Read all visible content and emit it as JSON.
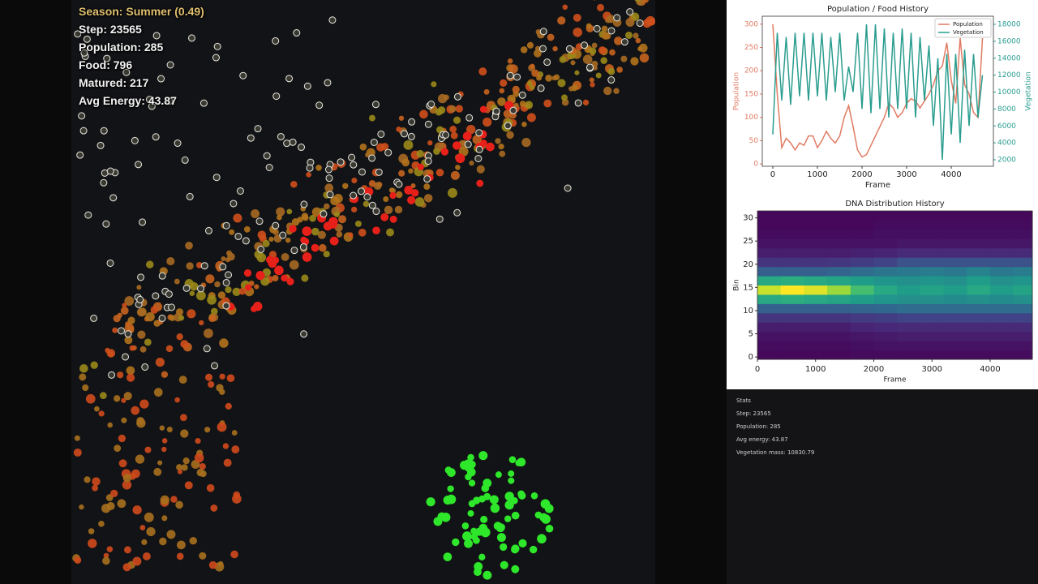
{
  "overlay": {
    "season": "Season: Summer (0.49)",
    "lines": [
      "Step: 23565",
      "Population: 285",
      "Food: 796",
      "Matured: 217",
      "Avg Energy: 43.87"
    ]
  },
  "stats_panel": {
    "title": "Stats",
    "lines": [
      "Step: 23565",
      "Population: 285",
      "Avg energy: 43.87",
      "Vegetation mass: 10830.79"
    ]
  },
  "chart_data": [
    {
      "type": "line",
      "title": "Population / Food History",
      "xlabel": "Frame",
      "ylabel": "Population",
      "y2label": "Vegetation",
      "legend": "upper right",
      "x": [
        0,
        100,
        200,
        300,
        400,
        500,
        600,
        700,
        800,
        900,
        1000,
        1100,
        1200,
        1300,
        1400,
        1500,
        1600,
        1700,
        1800,
        1900,
        2000,
        2100,
        2200,
        2300,
        2400,
        2500,
        2600,
        2700,
        2800,
        2900,
        3000,
        3100,
        3200,
        3300,
        3400,
        3500,
        3600,
        3700,
        3800,
        3900,
        4000,
        4100,
        4200,
        4300,
        4400,
        4500,
        4600,
        4700
      ],
      "xlim": [
        -236,
        4945
      ],
      "xticks": [
        0,
        1000,
        2000,
        3000,
        4000
      ],
      "ylim": [
        -5,
        317
      ],
      "yticks": [
        0,
        50,
        100,
        150,
        200,
        250,
        300
      ],
      "y2lim": [
        1234,
        18958
      ],
      "y2ticks": [
        2000,
        4000,
        6000,
        8000,
        10000,
        12000,
        14000,
        16000,
        18000
      ],
      "series": [
        {
          "name": "Population",
          "color": "#e07b62",
          "values": [
            300,
            150,
            35,
            55,
            45,
            30,
            45,
            40,
            60,
            60,
            35,
            50,
            70,
            55,
            45,
            60,
            100,
            125,
            80,
            30,
            15,
            20,
            40,
            60,
            80,
            100,
            130,
            120,
            100,
            110,
            130,
            140,
            135,
            120,
            135,
            150,
            170,
            200,
            210,
            260,
            180,
            130,
            270,
            170,
            150,
            110,
            100,
            270
          ]
        },
        {
          "name": "Vegetation",
          "color": "#2a9d8f",
          "axis": "y2",
          "values": [
            5000,
            17000,
            9000,
            16500,
            8500,
            17000,
            9500,
            17000,
            9000,
            17000,
            9500,
            17000,
            9000,
            16500,
            10000,
            17000,
            9000,
            13000,
            10000,
            17000,
            8000,
            18000,
            7500,
            18000,
            8000,
            17500,
            7000,
            17000,
            8000,
            17500,
            8000,
            17000,
            7000,
            16500,
            9000,
            15500,
            6000,
            14000,
            2000,
            14500,
            5000,
            14500,
            4000,
            15000,
            6000,
            14500,
            7000,
            12000
          ]
        }
      ]
    },
    {
      "type": "heatmap",
      "title": "DNA Distribution History",
      "xlabel": "Frame",
      "ylabel": "Bin",
      "colormap": "viridis",
      "xlim": [
        0,
        4725
      ],
      "xticks": [
        0,
        1000,
        2000,
        3000,
        4000
      ],
      "ylim": [
        -0.5,
        31.5
      ],
      "yticks": [
        0,
        5,
        10,
        15,
        20,
        25,
        30
      ],
      "x_edges": [
        0,
        400,
        800,
        1200,
        1600,
        2000,
        2400,
        2800,
        3200,
        3600,
        4000,
        4400,
        4725
      ],
      "y_edges": [
        -0.5,
        1.5,
        3.5,
        5.5,
        7.5,
        9.5,
        11.5,
        13.5,
        15.5,
        17.5,
        19.5,
        21.5,
        23.5,
        25.5,
        27.5,
        29.5,
        31.5
      ],
      "z": [
        [
          0.02,
          0.02,
          0.02,
          0.02,
          0.03,
          0.03,
          0.03,
          0.03,
          0.03,
          0.03,
          0.03,
          0.03
        ],
        [
          0.03,
          0.03,
          0.03,
          0.03,
          0.04,
          0.05,
          0.05,
          0.05,
          0.05,
          0.05,
          0.05,
          0.05
        ],
        [
          0.05,
          0.05,
          0.05,
          0.05,
          0.06,
          0.07,
          0.08,
          0.08,
          0.08,
          0.08,
          0.08,
          0.08
        ],
        [
          0.08,
          0.08,
          0.08,
          0.08,
          0.1,
          0.11,
          0.12,
          0.12,
          0.12,
          0.12,
          0.12,
          0.12
        ],
        [
          0.15,
          0.15,
          0.15,
          0.15,
          0.17,
          0.18,
          0.2,
          0.2,
          0.2,
          0.2,
          0.2,
          0.2
        ],
        [
          0.3,
          0.3,
          0.3,
          0.3,
          0.32,
          0.33,
          0.35,
          0.35,
          0.35,
          0.35,
          0.35,
          0.35
        ],
        [
          0.6,
          0.62,
          0.6,
          0.58,
          0.55,
          0.52,
          0.5,
          0.5,
          0.48,
          0.5,
          0.48,
          0.5
        ],
        [
          0.92,
          1,
          0.95,
          0.85,
          0.7,
          0.6,
          0.55,
          0.58,
          0.55,
          0.6,
          0.55,
          0.58
        ],
        [
          0.6,
          0.62,
          0.6,
          0.58,
          0.55,
          0.52,
          0.5,
          0.52,
          0.5,
          0.55,
          0.5,
          0.52
        ],
        [
          0.3,
          0.3,
          0.3,
          0.32,
          0.35,
          0.38,
          0.4,
          0.42,
          0.4,
          0.45,
          0.4,
          0.42
        ],
        [
          0.15,
          0.15,
          0.15,
          0.16,
          0.18,
          0.2,
          0.25,
          0.25,
          0.25,
          0.25,
          0.25,
          0.25
        ],
        [
          0.08,
          0.08,
          0.08,
          0.08,
          0.09,
          0.1,
          0.12,
          0.12,
          0.12,
          0.12,
          0.12,
          0.12
        ],
        [
          0.05,
          0.05,
          0.05,
          0.05,
          0.05,
          0.05,
          0.06,
          0.06,
          0.06,
          0.06,
          0.06,
          0.06
        ],
        [
          0.03,
          0.03,
          0.03,
          0.03,
          0.03,
          0.04,
          0.04,
          0.04,
          0.04,
          0.04,
          0.04,
          0.04
        ],
        [
          0.02,
          0.02,
          0.02,
          0.02,
          0.02,
          0.03,
          0.03,
          0.03,
          0.03,
          0.03,
          0.03,
          0.03
        ],
        [
          0.02,
          0.02,
          0.02,
          0.02,
          0.02,
          0.02,
          0.02,
          0.02,
          0.02,
          0.02,
          0.02,
          0.02
        ]
      ]
    }
  ]
}
